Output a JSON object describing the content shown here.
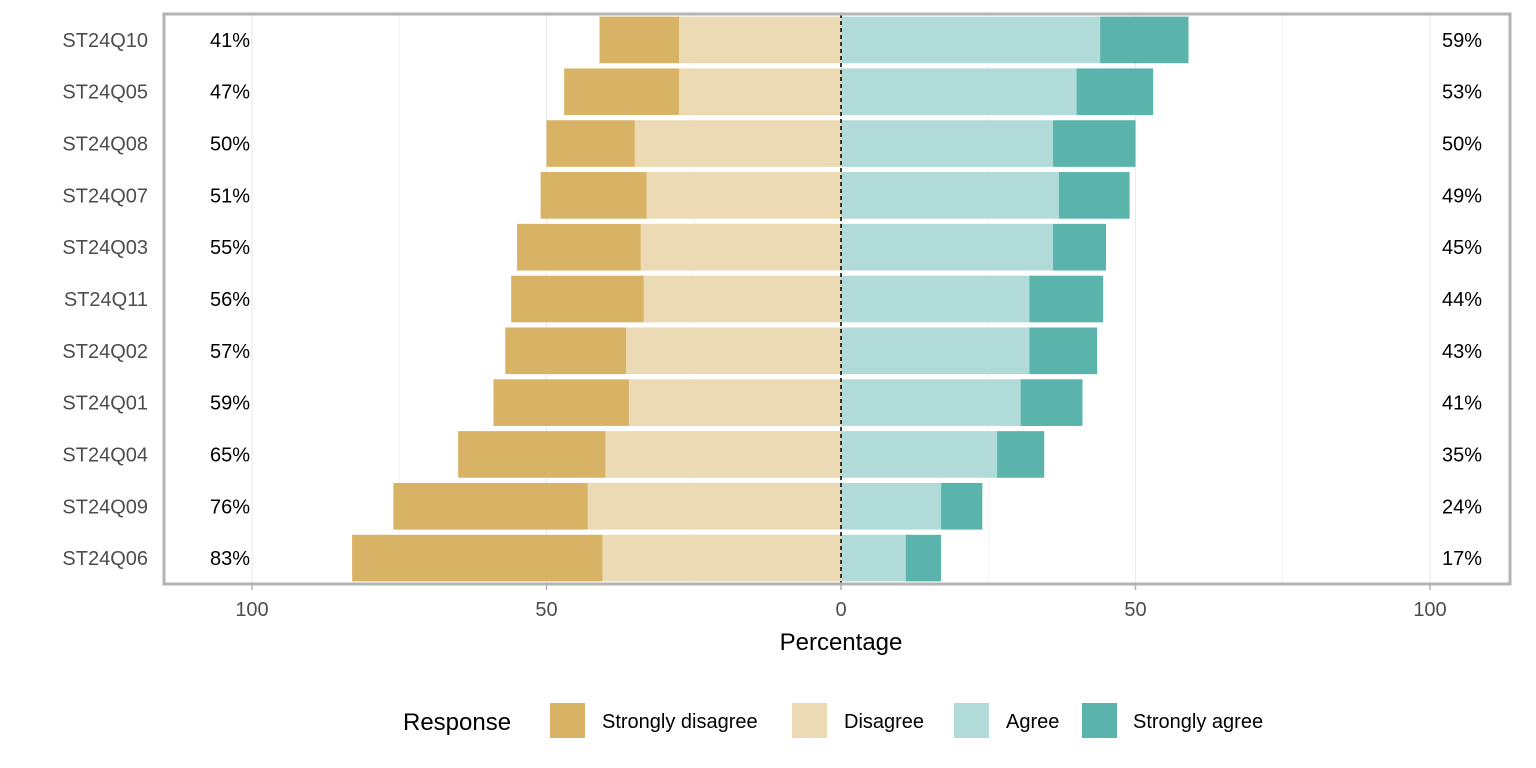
{
  "chart_data": {
    "type": "bar",
    "orientation": "horizontal",
    "layout": "diverging-stacked",
    "xlabel": "Percentage",
    "xlim": [
      -112,
      112
    ],
    "xticks": [
      -100,
      -50,
      0,
      50,
      100
    ],
    "xtick_labels": [
      "100",
      "50",
      "0",
      "50",
      "100"
    ],
    "grid": true,
    "legend": {
      "title": "Response",
      "position": "bottom"
    },
    "colors": {
      "Strongly disagree": "#d8b365",
      "Disagree": "#ebdab3",
      "Agree": "#b0dbd8",
      "Strongly agree": "#5ab4ac"
    },
    "categories": [
      "ST24Q10",
      "ST24Q05",
      "ST24Q08",
      "ST24Q07",
      "ST24Q03",
      "ST24Q11",
      "ST24Q02",
      "ST24Q01",
      "ST24Q04",
      "ST24Q09",
      "ST24Q06"
    ],
    "series": [
      {
        "name": "Strongly disagree",
        "values": [
          13.5,
          19.5,
          15,
          18,
          21,
          22.5,
          20.5,
          23,
          25,
          33,
          42.5
        ]
      },
      {
        "name": "Disagree",
        "values": [
          27.5,
          27.5,
          35,
          33,
          34,
          33.5,
          36.5,
          36,
          40,
          43,
          40.5
        ]
      },
      {
        "name": "Agree",
        "values": [
          44,
          40,
          36,
          37,
          36,
          32,
          32,
          30.5,
          26.5,
          17,
          11
        ]
      },
      {
        "name": "Strongly agree",
        "values": [
          15,
          13,
          14,
          12,
          9,
          12.5,
          11.5,
          10.5,
          8,
          7,
          6
        ]
      }
    ],
    "left_labels": [
      "41%",
      "47%",
      "50%",
      "51%",
      "55%",
      "56%",
      "57%",
      "59%",
      "65%",
      "76%",
      "83%"
    ],
    "right_labels": [
      "59%",
      "53%",
      "50%",
      "49%",
      "45%",
      "44%",
      "43%",
      "41%",
      "35%",
      "24%",
      "17%"
    ]
  }
}
